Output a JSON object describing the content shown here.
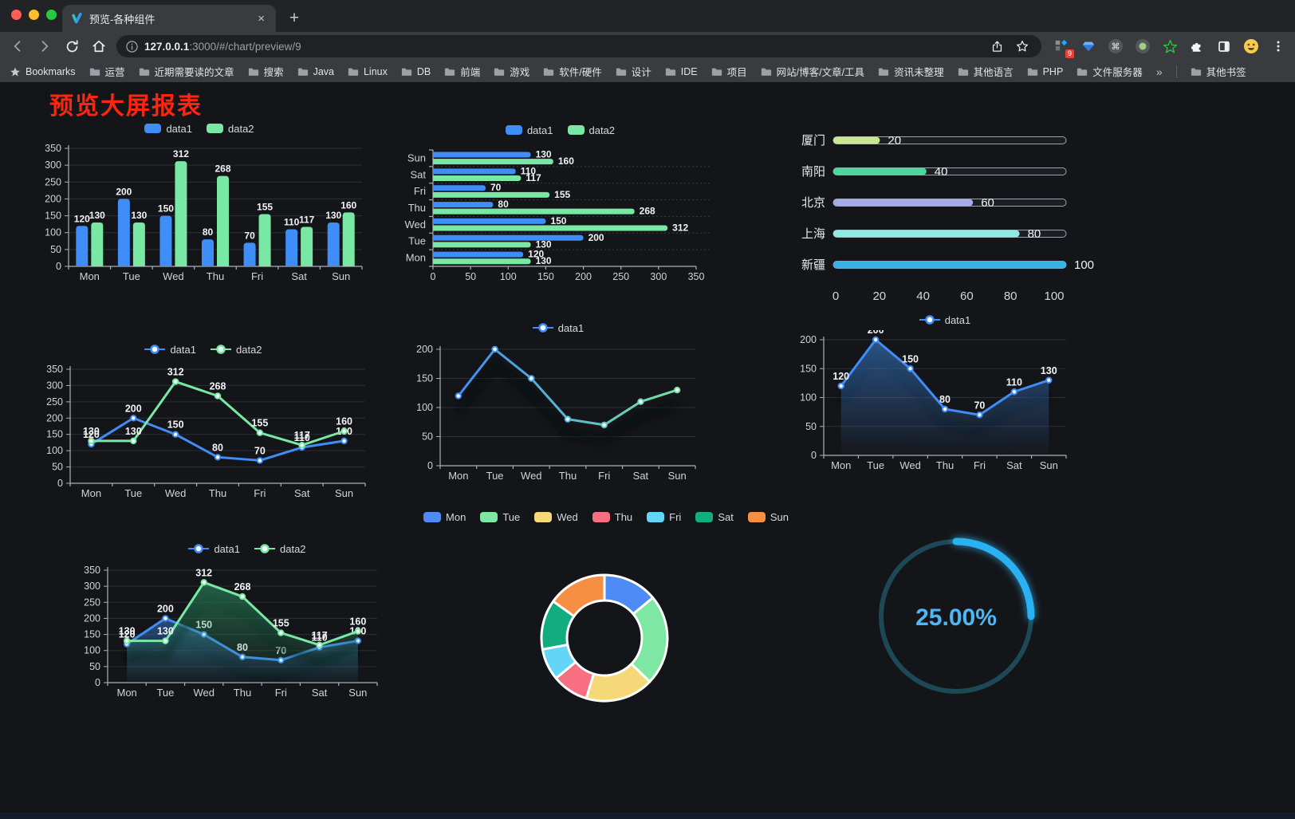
{
  "browser": {
    "tab": {
      "title": "预览-各种组件",
      "close_glyph": "×",
      "new_tab_glyph": "+"
    },
    "url": {
      "host": "127.0.0.1",
      "rest": ":3000/#/chart/preview/9"
    },
    "extension_badge": "9",
    "bookmarks_root_label": "Bookmarks",
    "bookmarks": [
      "运营",
      "近期需要读的文章",
      "搜索",
      "Java",
      "Linux",
      "DB",
      "前端",
      "游戏",
      "软件/硬件",
      "设计",
      "IDE",
      "项目",
      "网站/博客/文章/工具",
      "资讯未整理",
      "其他语言",
      "PHP",
      "文件服务器"
    ],
    "bookmarks_overflow_glyph": "»",
    "other_bookmarks_label": "其他书签"
  },
  "page": {
    "title": "预览大屏报表",
    "title_color": "#fb2512"
  },
  "colors": {
    "data1": "#3f8df6",
    "data2": "#79e8a5",
    "grid": "#2b2f37",
    "axis": "#aab0b9",
    "tick_label": "#cfd3d9",
    "value_label": "#f3f4f6"
  },
  "chart_data": [
    {
      "id": "bar-grouped",
      "type": "bar",
      "title": "",
      "categories": [
        "Mon",
        "Tue",
        "Wed",
        "Thu",
        "Fri",
        "Sat",
        "Sun"
      ],
      "series": [
        {
          "name": "data1",
          "color": "#3f8df6",
          "values": [
            120,
            200,
            150,
            80,
            70,
            110,
            130
          ]
        },
        {
          "name": "data2",
          "color": "#79e8a5",
          "values": [
            130,
            130,
            312,
            268,
            155,
            117,
            160
          ]
        }
      ],
      "ylim": [
        0,
        350
      ],
      "yticks": [
        0,
        50,
        100,
        150,
        200,
        250,
        300,
        350
      ],
      "legend_position": "top"
    },
    {
      "id": "bar-horizontal",
      "type": "bar",
      "orientation": "horizontal",
      "categories": [
        "Mon",
        "Tue",
        "Wed",
        "Thu",
        "Fri",
        "Sat",
        "Sun"
      ],
      "series": [
        {
          "name": "data1",
          "color": "#3f8df6",
          "values": [
            120,
            200,
            150,
            80,
            70,
            110,
            130
          ]
        },
        {
          "name": "data2",
          "color": "#79e8a5",
          "values": [
            130,
            130,
            312,
            268,
            155,
            117,
            160
          ]
        }
      ],
      "xlim": [
        0,
        350
      ],
      "xticks": [
        0,
        50,
        100,
        150,
        200,
        250,
        300,
        350
      ],
      "legend_position": "top"
    },
    {
      "id": "progress-bars",
      "type": "bar",
      "orientation": "horizontal-progress",
      "max": 100,
      "items": [
        {
          "label": "厦门",
          "value": 20,
          "color": "#c9e793"
        },
        {
          "label": "南阳",
          "value": 40,
          "color": "#4fd6a0"
        },
        {
          "label": "北京",
          "value": 60,
          "color": "#a5abe8"
        },
        {
          "label": "上海",
          "value": 80,
          "color": "#8fe9e2"
        },
        {
          "label": "新疆",
          "value": 100,
          "color": "#38b2e4"
        }
      ],
      "xticks": [
        0,
        20,
        40,
        60,
        80,
        100
      ]
    },
    {
      "id": "line-two-series",
      "type": "line",
      "categories": [
        "Mon",
        "Tue",
        "Wed",
        "Thu",
        "Fri",
        "Sat",
        "Sun"
      ],
      "series": [
        {
          "name": "data1",
          "color": "#3f8df6",
          "values": [
            120,
            200,
            150,
            80,
            70,
            110,
            130
          ]
        },
        {
          "name": "data2",
          "color": "#79e8a5",
          "values": [
            130,
            130,
            312,
            268,
            155,
            117,
            160
          ]
        }
      ],
      "ylim": [
        0,
        350
      ],
      "yticks": [
        0,
        50,
        100,
        150,
        200,
        250,
        300,
        350
      ],
      "point_labels": true,
      "legend_position": "top"
    },
    {
      "id": "line-gradient",
      "type": "line",
      "categories": [
        "Mon",
        "Tue",
        "Wed",
        "Thu",
        "Fri",
        "Sat",
        "Sun"
      ],
      "series": [
        {
          "name": "data1",
          "color": "#3f8df6",
          "values": [
            120,
            200,
            150,
            80,
            70,
            110,
            130
          ]
        }
      ],
      "ylim": [
        0,
        200
      ],
      "yticks": [
        0,
        50,
        100,
        150,
        200
      ],
      "point_labels": false,
      "line_gradient": [
        "#3f8df6",
        "#74e3a2"
      ],
      "point_colors": [
        "#3f8df6",
        "#429bf2",
        "#4aa9ec",
        "#55bae2",
        "#5fccd4",
        "#6bd9b6",
        "#74e3a2"
      ],
      "shadow": true,
      "legend_position": "top"
    },
    {
      "id": "area-single",
      "type": "area",
      "categories": [
        "Mon",
        "Tue",
        "Wed",
        "Thu",
        "Fri",
        "Sat",
        "Sun"
      ],
      "series": [
        {
          "name": "data1",
          "color": "#3f8df6",
          "values": [
            120,
            200,
            150,
            80,
            70,
            110,
            130
          ],
          "area": "#3f86e0"
        }
      ],
      "ylim": [
        0,
        200
      ],
      "yticks": [
        0,
        50,
        100,
        150,
        200
      ],
      "point_labels": true,
      "shadow": true,
      "legend_position": "top"
    },
    {
      "id": "area-two-series",
      "type": "area",
      "categories": [
        "Mon",
        "Tue",
        "Wed",
        "Thu",
        "Fri",
        "Sat",
        "Sun"
      ],
      "series": [
        {
          "name": "data1",
          "color": "#3f8df6",
          "values": [
            120,
            200,
            150,
            80,
            70,
            110,
            130
          ],
          "area": "#3a7bd0"
        },
        {
          "name": "data2",
          "color": "#79e8a5",
          "values": [
            130,
            130,
            312,
            268,
            155,
            117,
            160
          ],
          "area": "#2f9e6a"
        }
      ],
      "ylim": [
        0,
        350
      ],
      "yticks": [
        0,
        50,
        100,
        150,
        200,
        250,
        300,
        350
      ],
      "point_labels": true,
      "shadow": true,
      "legend_position": "top"
    },
    {
      "id": "donut",
      "type": "pie",
      "donut": true,
      "categories": [
        "Mon",
        "Tue",
        "Wed",
        "Thu",
        "Fri",
        "Sat",
        "Sun"
      ],
      "values": [
        120,
        200,
        150,
        80,
        70,
        110,
        130
      ],
      "colors": [
        "#4e8bf4",
        "#7fe7a4",
        "#f5d878",
        "#f76f80",
        "#63d5f7",
        "#12ad7e",
        "#f68f42"
      ],
      "legend_position": "top"
    },
    {
      "id": "gauge",
      "type": "gauge",
      "value": 25,
      "label": "25.00%",
      "arc_color": "#2cb1f1",
      "track_color": "#1d4956",
      "text_color": "#4fb6f5"
    }
  ]
}
